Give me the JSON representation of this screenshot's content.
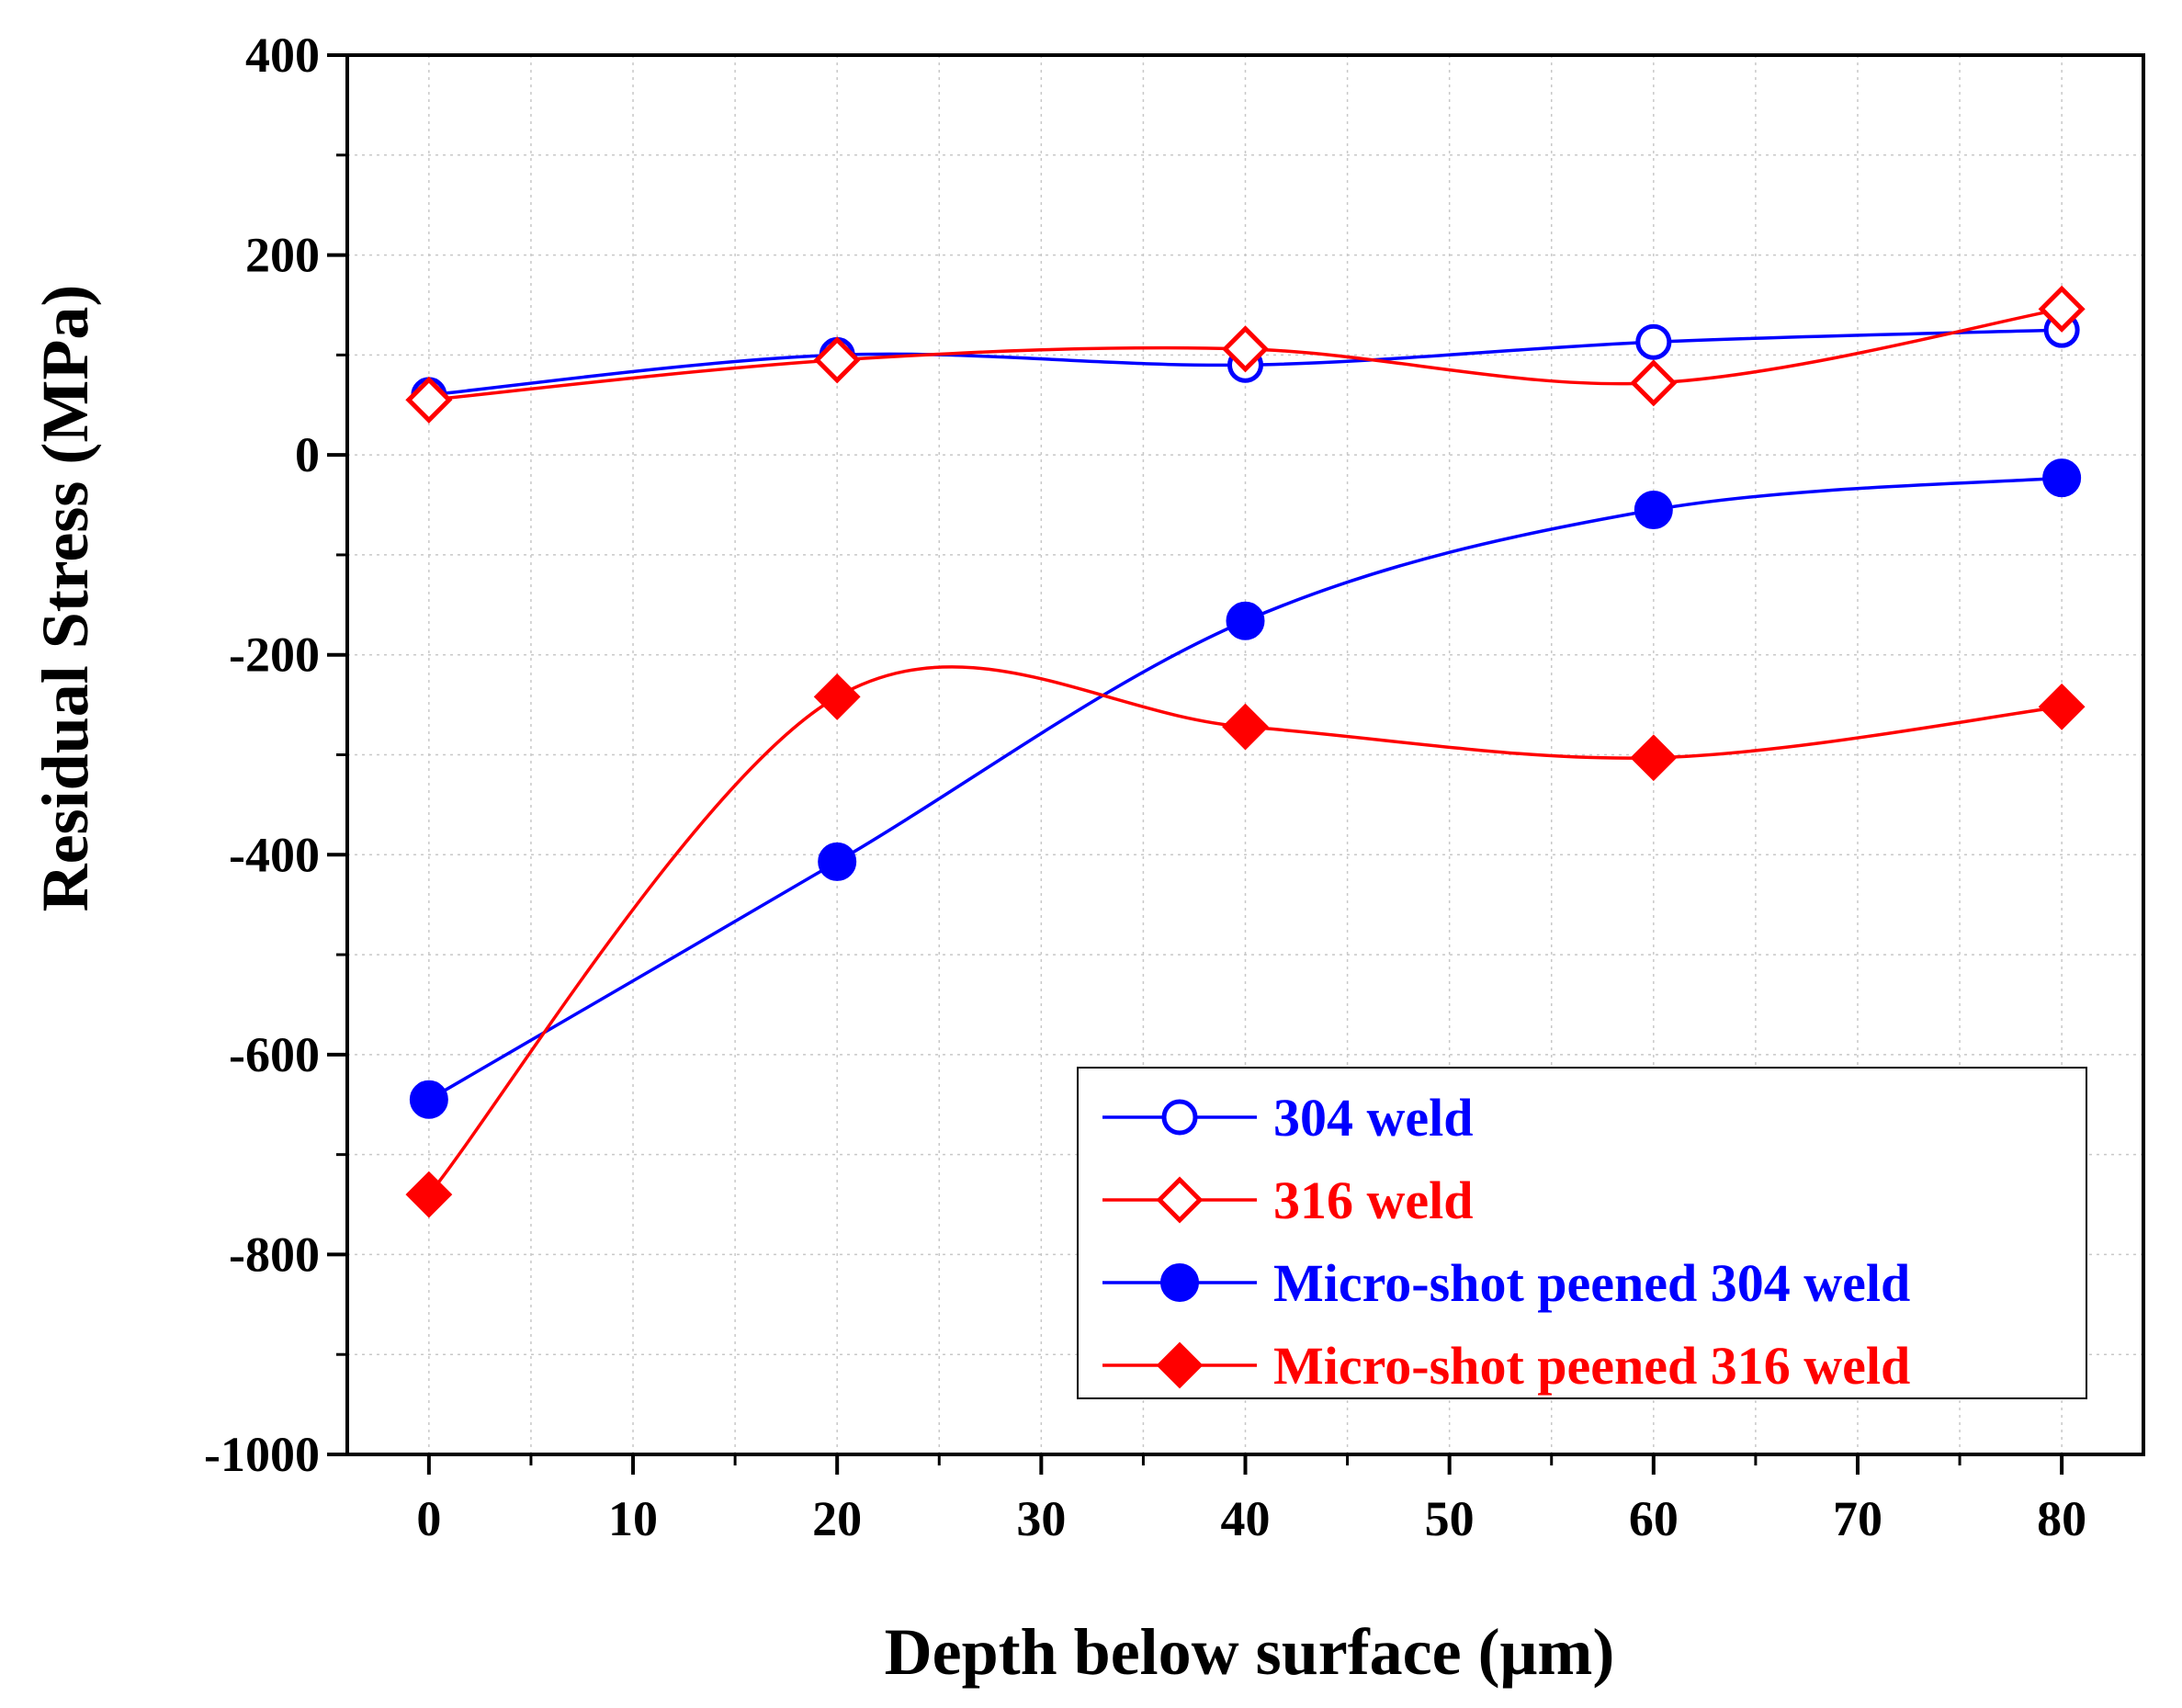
{
  "chart_data": {
    "type": "line",
    "title": "",
    "xlabel": "Depth below surface (μm)",
    "ylabel": "Residual Stress (MPa)",
    "xlim": [
      -4,
      84
    ],
    "ylim": [
      -1000,
      400
    ],
    "x_ticks": [
      0,
      10,
      20,
      30,
      40,
      50,
      60,
      70,
      80
    ],
    "x_tick_labels": [
      "0",
      "10",
      "20",
      "30",
      "40",
      "50",
      "60",
      "70",
      "80"
    ],
    "y_ticks": [
      -1000,
      -800,
      -600,
      -400,
      -200,
      0,
      200,
      400
    ],
    "y_tick_labels": [
      "-1000",
      "-800",
      "-600",
      "-400",
      "-200",
      "0",
      "200",
      "400"
    ],
    "grid": true,
    "legend_position": "bottom-right",
    "x": [
      0,
      20,
      40,
      60,
      80
    ],
    "series": [
      {
        "name": "304 weld",
        "color": "#0000ff",
        "marker": "circle-open",
        "values": [
          60,
          100,
          90,
          113,
          125
        ]
      },
      {
        "name": "316 weld",
        "color": "#ff0000",
        "marker": "diamond-open",
        "values": [
          55,
          95,
          106,
          72,
          146
        ]
      },
      {
        "name": "Micro-shot peened 304 weld",
        "color": "#0000ff",
        "marker": "circle-filled",
        "values": [
          -645,
          -407,
          -166,
          -55,
          -23
        ]
      },
      {
        "name": "Micro-shot peened 316 weld",
        "color": "#ff0000",
        "marker": "diamond-filled",
        "values": [
          -740,
          -242,
          -272,
          -303,
          -252
        ]
      }
    ]
  }
}
